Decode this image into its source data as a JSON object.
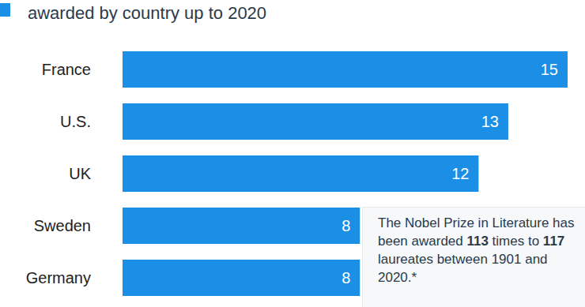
{
  "chart_data": {
    "type": "bar",
    "orientation": "horizontal",
    "title": "awarded by country up to 2020",
    "categories": [
      "France",
      "U.S.",
      "UK",
      "Sweden",
      "Germany"
    ],
    "values": [
      15,
      13,
      12,
      8,
      8
    ],
    "color": "#1b8fe6",
    "xlim": [
      0,
      15
    ],
    "grid": false,
    "data_labels": true,
    "tick_labels": "y",
    "annotation": "The Nobel Prize in Literature has been awarded 113 times to 117 laureates between 1901 and 2020.*"
  }
}
